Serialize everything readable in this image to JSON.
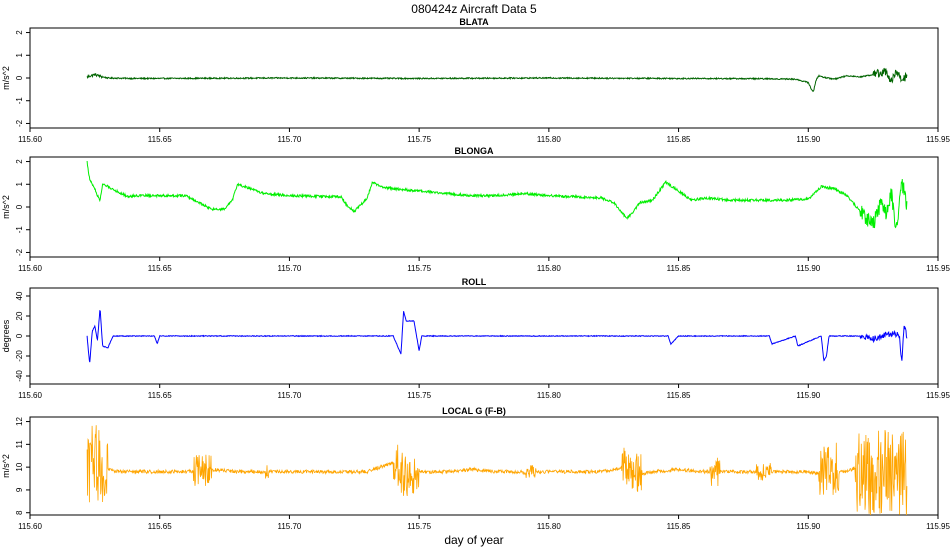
{
  "page": {
    "title": "080424z   Aircraft Data 5",
    "xlabel": "day of year"
  },
  "chart_data": [
    {
      "type": "line",
      "title": "BLATA",
      "ylabel": "m/s^2",
      "color": "#006400",
      "xlim": [
        115.6,
        115.95
      ],
      "ylim": [
        -2.2,
        2.2
      ],
      "xticks": [
        "115.60",
        "115.65",
        "115.70",
        "115.75",
        "115.80",
        "115.85",
        "115.90",
        "115.95"
      ],
      "yticks": [
        "-2",
        "-1",
        "0",
        "1",
        "2"
      ],
      "x": [
        115.622,
        115.625,
        115.628,
        115.63,
        115.64,
        115.65,
        115.7,
        115.75,
        115.8,
        115.85,
        115.88,
        115.895,
        115.9,
        115.901,
        115.902,
        115.903,
        115.904,
        115.906,
        115.91,
        115.915,
        115.92,
        115.925,
        115.93,
        115.932,
        115.934,
        115.936,
        115.938
      ],
      "y": [
        0.05,
        0.15,
        0.05,
        0.0,
        -0.02,
        -0.02,
        0.0,
        -0.02,
        0.0,
        -0.02,
        -0.03,
        -0.05,
        -0.2,
        -0.45,
        -0.6,
        -0.1,
        0.1,
        0.03,
        -0.05,
        0.1,
        0.05,
        0.15,
        0.3,
        -0.15,
        0.25,
        -0.1,
        0.1
      ]
    },
    {
      "type": "line",
      "title": "BLONGA",
      "ylabel": "m/s^2",
      "color": "#00ee00",
      "xlim": [
        115.6,
        115.95
      ],
      "ylim": [
        -2.2,
        2.2
      ],
      "xticks": [
        "115.60",
        "115.65",
        "115.70",
        "115.75",
        "115.80",
        "115.85",
        "115.90",
        "115.95"
      ],
      "yticks": [
        "-2",
        "-1",
        "0",
        "1",
        "2"
      ],
      "x": [
        115.622,
        115.623,
        115.625,
        115.626,
        115.627,
        115.628,
        115.63,
        115.635,
        115.638,
        115.64,
        115.66,
        115.665,
        115.67,
        115.675,
        115.678,
        115.68,
        115.685,
        115.69,
        115.7,
        115.72,
        115.722,
        115.725,
        115.73,
        115.732,
        115.735,
        115.74,
        115.75,
        115.76,
        115.77,
        115.78,
        115.79,
        115.8,
        115.82,
        115.825,
        115.83,
        115.832,
        115.835,
        115.84,
        115.845,
        115.85,
        115.855,
        115.86,
        115.87,
        115.88,
        115.89,
        115.9,
        115.905,
        115.91,
        115.915,
        115.92,
        115.925,
        115.928,
        115.93,
        115.932,
        115.934,
        115.936,
        115.938
      ],
      "y": [
        2.0,
        1.2,
        0.8,
        0.5,
        0.3,
        1.0,
        0.9,
        0.6,
        0.45,
        0.5,
        0.5,
        0.2,
        -0.1,
        -0.1,
        0.3,
        1.0,
        0.8,
        0.6,
        0.5,
        0.45,
        0.1,
        -0.2,
        0.4,
        1.1,
        0.9,
        0.8,
        0.7,
        0.6,
        0.5,
        0.5,
        0.6,
        0.5,
        0.4,
        0.2,
        -0.5,
        -0.3,
        0.2,
        0.3,
        1.1,
        0.7,
        0.3,
        0.4,
        0.3,
        0.3,
        0.3,
        0.35,
        0.9,
        0.8,
        0.5,
        -0.2,
        -0.8,
        0.2,
        -0.4,
        0.6,
        -1.0,
        1.2,
        0.0
      ]
    },
    {
      "type": "line",
      "title": "ROLL",
      "ylabel": "degrees",
      "color": "#0000ff",
      "xlim": [
        115.6,
        115.95
      ],
      "ylim": [
        -48,
        48
      ],
      "xticks": [
        "115.60",
        "115.65",
        "115.70",
        "115.75",
        "115.80",
        "115.85",
        "115.90",
        "115.95"
      ],
      "yticks": [
        "-40",
        "-20",
        "0",
        "20",
        "40"
      ],
      "x": [
        115.622,
        115.623,
        115.624,
        115.625,
        115.626,
        115.627,
        115.628,
        115.63,
        115.632,
        115.64,
        115.648,
        115.649,
        115.65,
        115.67,
        115.695,
        115.74,
        115.743,
        115.744,
        115.745,
        115.748,
        115.75,
        115.751,
        115.76,
        115.8,
        115.83,
        115.846,
        115.847,
        115.85,
        115.885,
        115.886,
        115.895,
        115.896,
        115.905,
        115.906,
        115.907,
        115.908,
        115.91,
        115.92,
        115.925,
        115.93,
        115.935,
        115.936,
        115.937,
        115.938
      ],
      "y": [
        0,
        -28,
        5,
        10,
        -5,
        28,
        -10,
        -12,
        0,
        0,
        0,
        -8,
        0,
        0,
        0,
        0,
        -18,
        25,
        15,
        15,
        -15,
        0,
        0,
        0,
        0,
        0,
        -8,
        0,
        0,
        -8,
        0,
        -10,
        0,
        -25,
        -20,
        0,
        0,
        0,
        -3,
        2,
        2,
        -25,
        10,
        0
      ]
    },
    {
      "type": "line",
      "title": "LOCAL G (F-B)",
      "ylabel": "m/s^2",
      "color": "#ffa500",
      "xlim": [
        115.6,
        115.95
      ],
      "ylim": [
        7.9,
        12.2
      ],
      "xticks": [
        "115.60",
        "115.65",
        "115.70",
        "115.75",
        "115.80",
        "115.85",
        "115.90",
        "115.95"
      ],
      "yticks": [
        "8",
        "9",
        "10",
        "11",
        "12"
      ],
      "x": [
        115.622,
        115.625,
        115.628,
        115.63,
        115.635,
        115.64,
        115.65,
        115.66,
        115.67,
        115.68,
        115.69,
        115.7,
        115.71,
        115.72,
        115.73,
        115.74,
        115.745,
        115.75,
        115.76,
        115.77,
        115.78,
        115.79,
        115.8,
        115.81,
        115.82,
        115.83,
        115.835,
        115.84,
        115.85,
        115.86,
        115.87,
        115.88,
        115.89,
        115.9,
        115.905,
        115.91,
        115.915,
        115.92,
        115.925,
        115.93,
        115.935,
        115.938
      ],
      "y": [
        9.8,
        10.5,
        9.6,
        9.9,
        9.8,
        9.8,
        9.8,
        9.8,
        9.9,
        9.8,
        9.8,
        9.8,
        9.8,
        9.8,
        9.8,
        10.2,
        9.6,
        9.8,
        9.8,
        9.9,
        9.8,
        9.8,
        9.8,
        9.8,
        9.8,
        10.0,
        9.7,
        9.8,
        9.9,
        9.8,
        9.8,
        9.8,
        9.8,
        9.8,
        9.7,
        9.9,
        9.8,
        10.1,
        9.6,
        10.2,
        9.5,
        9.8
      ]
    }
  ]
}
